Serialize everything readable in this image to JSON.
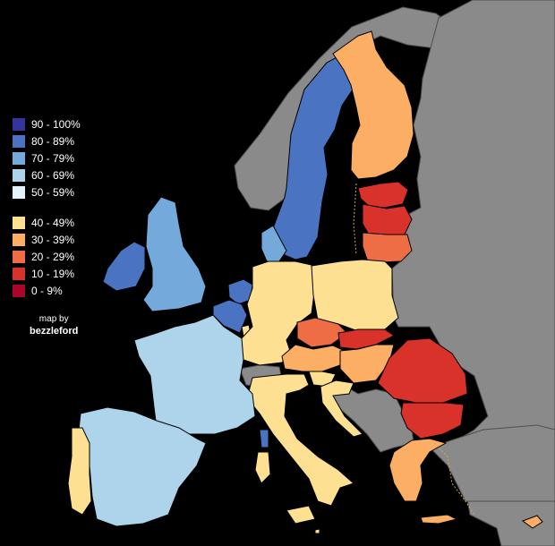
{
  "legend": {
    "high": [
      {
        "label": "90 - 100%",
        "color": "#36349c"
      },
      {
        "label": "80 - 89%",
        "color": "#4a74c2"
      },
      {
        "label": "70 - 79%",
        "color": "#74a9dc"
      },
      {
        "label": "60 - 69%",
        "color": "#add4ea"
      },
      {
        "label": "50 - 59%",
        "color": "#e2f3fa"
      }
    ],
    "low": [
      {
        "label": "40 - 49%",
        "color": "#fee092"
      },
      {
        "label": "30 - 39%",
        "color": "#fbae64"
      },
      {
        "label": "20 - 29%",
        "color": "#ef6d45"
      },
      {
        "label": "10 - 19%",
        "color": "#d8322b"
      },
      {
        "label": "0 - 9%",
        "color": "#a8062a"
      }
    ]
  },
  "credit": {
    "line1": "map by",
    "line2": "bezzleford"
  },
  "colors": {
    "background": "#000000",
    "non_member": "#8a8a8a",
    "border": "#505050",
    "member_border": "#000000"
  }
}
